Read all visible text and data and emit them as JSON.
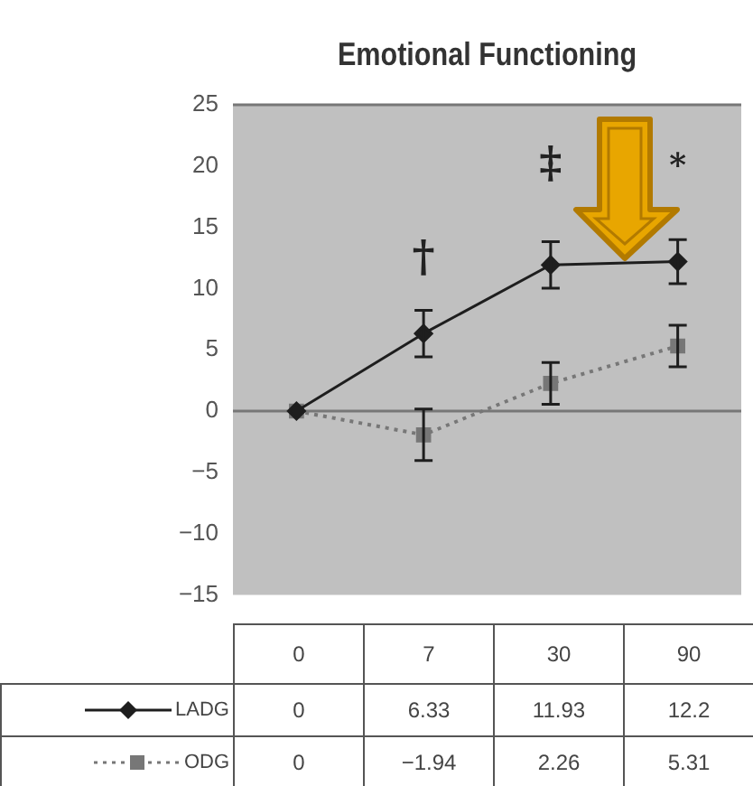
{
  "chart_data": {
    "type": "line",
    "title": "Emotional Functioning",
    "categories": [
      "0",
      "7",
      "30",
      "90"
    ],
    "series": [
      {
        "name": "LADG",
        "color": "#1e1e1e",
        "values": [
          0,
          6.33,
          11.93,
          12.2
        ],
        "errors": [
          null,
          1.9,
          1.9,
          1.8
        ],
        "marker": "diamond",
        "line_style": "solid"
      },
      {
        "name": "ODG",
        "color": "#777777",
        "values": [
          0,
          -1.94,
          2.26,
          5.31
        ],
        "errors": [
          null,
          2.1,
          1.7,
          1.7
        ],
        "marker": "square",
        "line_style": "dotted"
      }
    ],
    "ylim": [
      -15,
      25
    ],
    "yticks": [
      -15,
      -10,
      -5,
      0,
      5,
      10,
      15,
      20,
      25
    ],
    "grid": false,
    "legend": "bottom",
    "data_labels": true,
    "ref_lines": [
      {
        "axis": "y",
        "value": 0,
        "color": "#777777"
      }
    ],
    "annotations": [
      "†",
      "‡",
      "*"
    ]
  }
}
